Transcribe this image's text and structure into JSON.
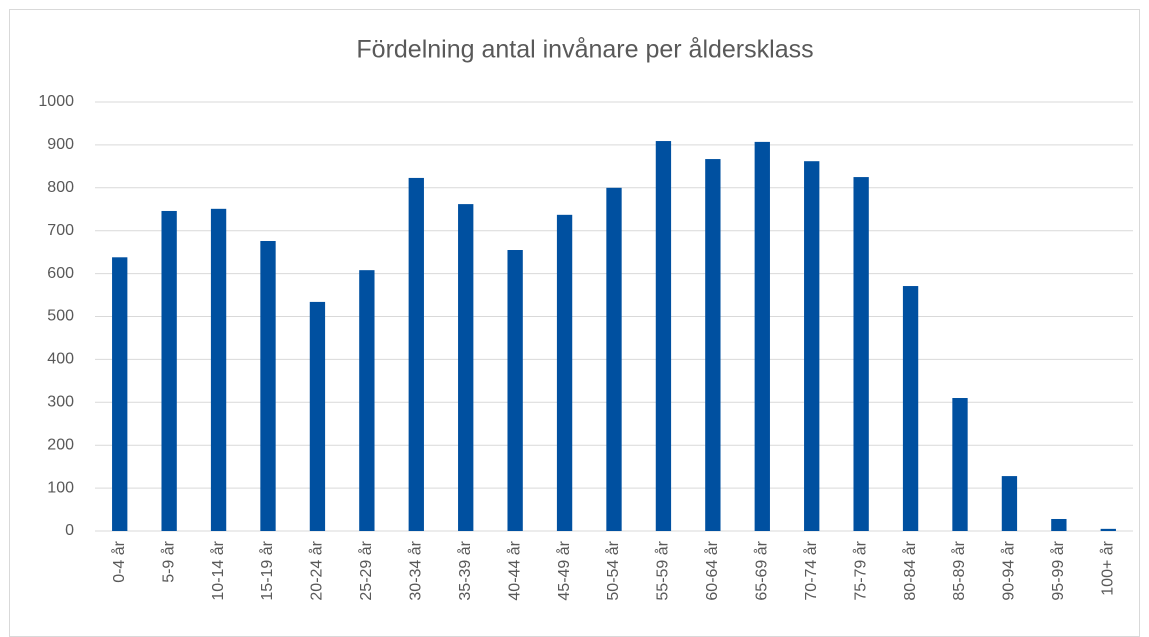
{
  "chart_data": {
    "type": "bar",
    "title": "Fördelning antal invånare per åldersklass",
    "categories": [
      "0-4 år",
      "5-9 år",
      "10-14 år",
      "15-19 år",
      "20-24 år",
      "25-29 år",
      "30-34 år",
      "35-39 år",
      "40-44 år",
      "45-49 år",
      "50-54 år",
      "55-59 år",
      "60-64 år",
      "65-69 år",
      "70-74 år",
      "75-79 år",
      "80-84 år",
      "85-89 år",
      "90-94 år",
      "95-99 år",
      "100+ år"
    ],
    "values": [
      638,
      746,
      751,
      676,
      534,
      608,
      823,
      762,
      655,
      737,
      800,
      909,
      867,
      907,
      862,
      825,
      571,
      310,
      128,
      28,
      5
    ],
    "color": "#0050a0",
    "ylim": [
      0,
      1000
    ],
    "yticks": [
      0,
      100,
      200,
      300,
      400,
      500,
      600,
      700,
      800,
      900,
      1000
    ],
    "grid": true
  }
}
